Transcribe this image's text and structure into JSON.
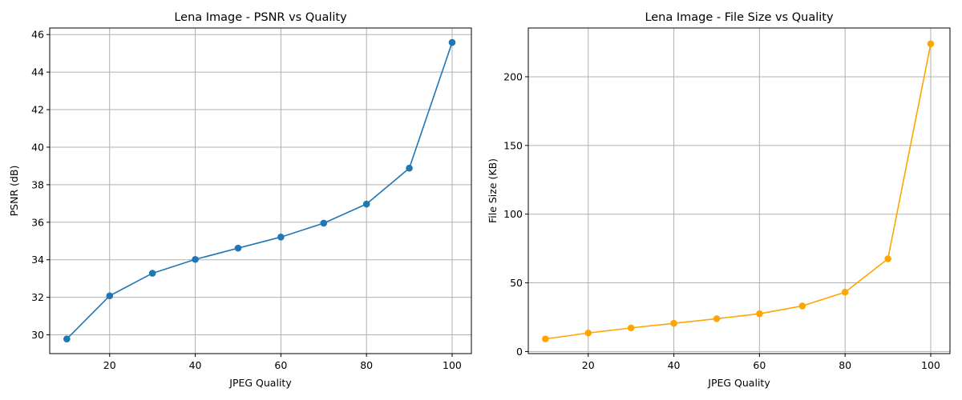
{
  "chart_data": [
    {
      "type": "line",
      "title": "Lena Image - PSNR vs Quality",
      "xlabel": "JPEG Quality",
      "ylabel": "PSNR (dB)",
      "x": [
        10,
        20,
        30,
        40,
        50,
        60,
        70,
        80,
        90,
        100
      ],
      "series": [
        {
          "values": [
            29.78,
            32.08,
            33.28,
            34.02,
            34.62,
            35.21,
            35.95,
            36.97,
            38.88,
            45.58
          ],
          "color": "#1f77b4"
        }
      ],
      "xlim": [
        6,
        104.5
      ],
      "ylim": [
        29.0,
        46.35
      ],
      "xticks": [
        20,
        40,
        60,
        80,
        100
      ],
      "yticks": [
        30,
        32,
        34,
        36,
        38,
        40,
        42,
        44,
        46
      ],
      "grid": true,
      "marker": "circle"
    },
    {
      "type": "line",
      "title": "Lena Image - File Size vs Quality",
      "xlabel": "JPEG Quality",
      "ylabel": "File Size (KB)",
      "x": [
        10,
        20,
        30,
        40,
        50,
        60,
        70,
        80,
        90,
        100
      ],
      "series": [
        {
          "values": [
            9.2,
            13.5,
            17.2,
            20.5,
            23.9,
            27.5,
            33.2,
            43.2,
            67.5,
            224.0
          ],
          "color": "#ffa500"
        }
      ],
      "xlim": [
        6,
        104.5
      ],
      "ylim": [
        -1.5,
        235.5
      ],
      "xticks": [
        20,
        40,
        60,
        80,
        100
      ],
      "yticks": [
        0,
        50,
        100,
        150,
        200
      ],
      "grid": true,
      "marker": "circle"
    }
  ]
}
